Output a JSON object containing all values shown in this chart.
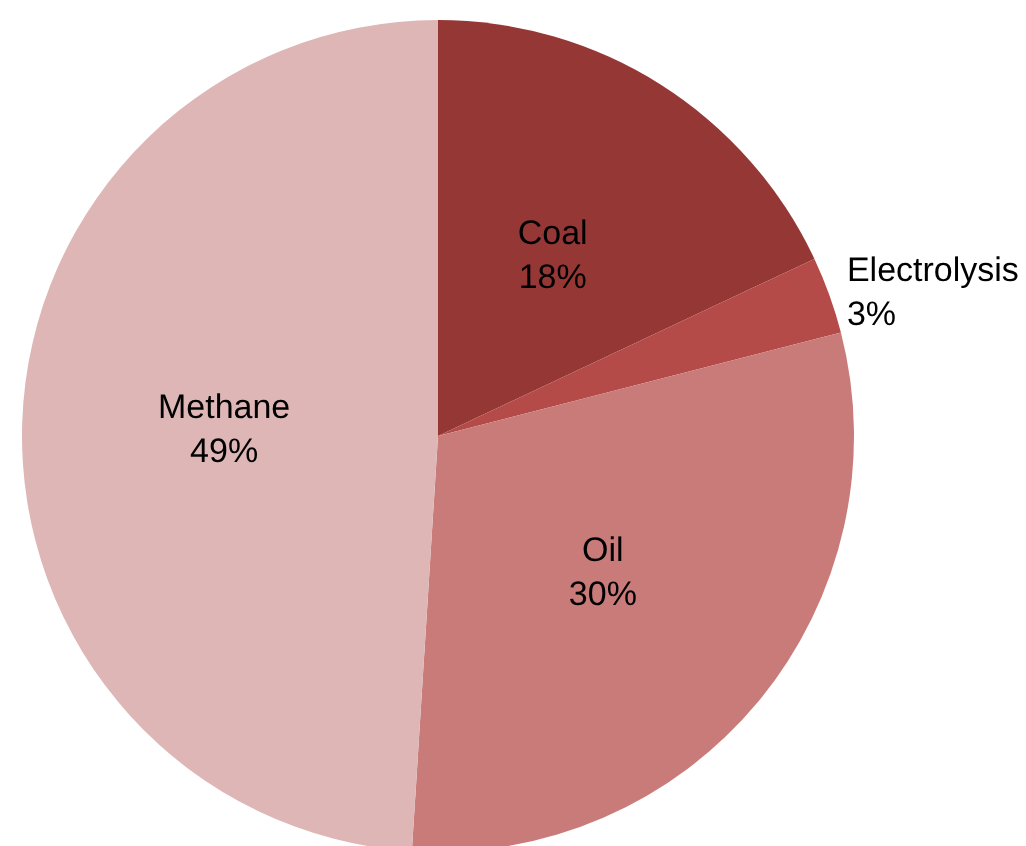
{
  "chart_data": {
    "type": "pie",
    "categories": [
      "Coal",
      "Electrolysis",
      "Oil",
      "Methane"
    ],
    "values": [
      18,
      3,
      30,
      49
    ],
    "colors": [
      "#953735",
      "#b44b48",
      "#c97b7a",
      "#deb6b6"
    ],
    "value_labels": [
      "18%",
      "3%",
      "30%",
      "49%"
    ],
    "legend": false
  }
}
